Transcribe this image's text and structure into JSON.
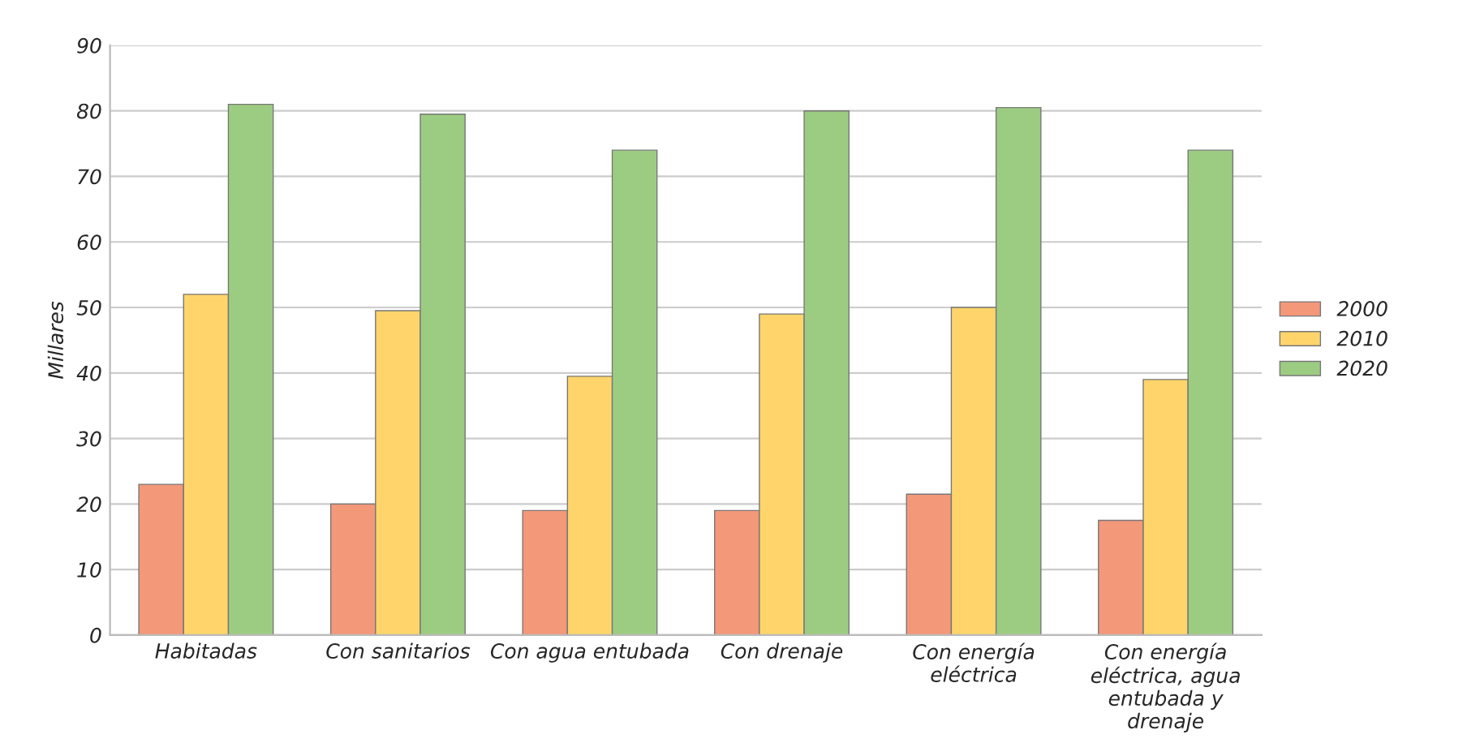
{
  "chart_data": {
    "type": "bar",
    "ylabel": "Millares",
    "categories": [
      "Habitadas",
      "Con sanitarios",
      "Con agua entubada",
      "Con drenaje",
      "Con energía eléctrica",
      "Con energía eléctrica, agua entubada y drenaje"
    ],
    "series": [
      {
        "name": "2000",
        "color": "#f4987a",
        "values": [
          23,
          20,
          19,
          19,
          21.5,
          17.5
        ]
      },
      {
        "name": "2010",
        "color": "#ffd56b",
        "values": [
          52,
          49.5,
          39.5,
          49,
          50,
          39
        ]
      },
      {
        "name": "2020",
        "color": "#9ccc82",
        "values": [
          81,
          79.5,
          74,
          80,
          80.5,
          74
        ]
      }
    ],
    "ylim": [
      0,
      90
    ],
    "yticks": [
      0,
      10,
      20,
      30,
      40,
      50,
      60,
      70,
      80,
      90
    ],
    "grid": "y",
    "legend": "right"
  }
}
